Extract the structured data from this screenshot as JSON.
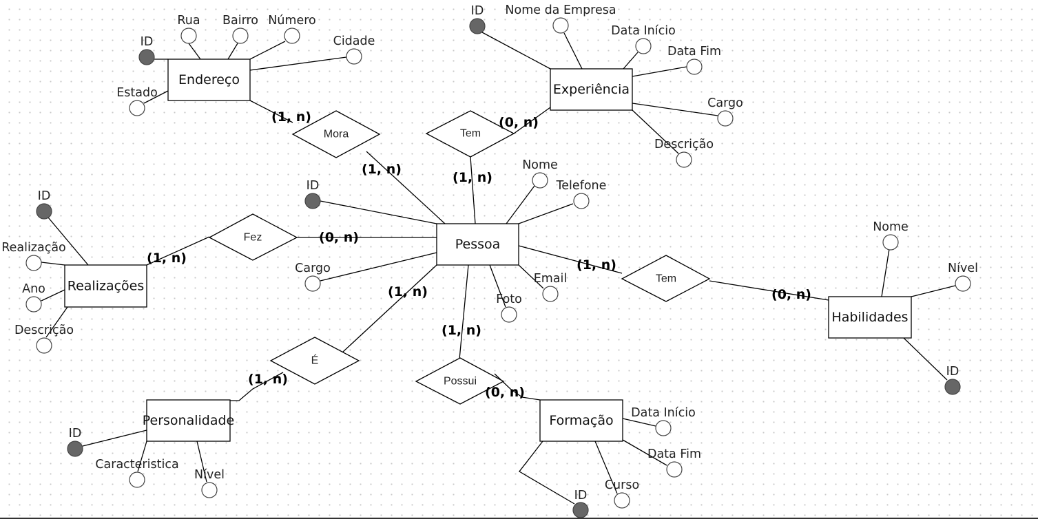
{
  "diagram": {
    "entities": [
      {
        "key": "endereco",
        "label": "Endereço"
      },
      {
        "key": "experiencia",
        "label": "Experiência"
      },
      {
        "key": "pessoa",
        "label": "Pessoa"
      },
      {
        "key": "realizacoes",
        "label": "Realizações"
      },
      {
        "key": "habilidades",
        "label": "Habilidades"
      },
      {
        "key": "personalidade",
        "label": "Personalidade"
      },
      {
        "key": "formacao",
        "label": "Formação"
      }
    ],
    "relationships": [
      {
        "key": "mora",
        "label": "Mora"
      },
      {
        "key": "tem_exp",
        "label": "Tem"
      },
      {
        "key": "fez",
        "label": "Fez"
      },
      {
        "key": "tem_hab",
        "label": "Tem"
      },
      {
        "key": "e",
        "label": "É"
      },
      {
        "key": "possui",
        "label": "Possui"
      }
    ],
    "attributes": {
      "endereco": [
        {
          "label": "ID",
          "key": true
        },
        {
          "label": "Rua",
          "key": false
        },
        {
          "label": "Bairro",
          "key": false
        },
        {
          "label": "Número",
          "key": false
        },
        {
          "label": "Cidade",
          "key": false
        },
        {
          "label": "Estado",
          "key": false
        }
      ],
      "experiencia": [
        {
          "label": "ID",
          "key": true
        },
        {
          "label": "Nome da Empresa",
          "key": false
        },
        {
          "label": "Data Início",
          "key": false
        },
        {
          "label": "Data Fim",
          "key": false
        },
        {
          "label": "Cargo",
          "key": false
        },
        {
          "label": "Descrição",
          "key": false
        }
      ],
      "pessoa": [
        {
          "label": "ID",
          "key": true
        },
        {
          "label": "Nome",
          "key": false
        },
        {
          "label": "Telefone",
          "key": false
        },
        {
          "label": "Cargo",
          "key": false
        },
        {
          "label": "Email",
          "key": false
        },
        {
          "label": "Foto",
          "key": false
        }
      ],
      "realizacoes": [
        {
          "label": "ID",
          "key": true
        },
        {
          "label": "Realização",
          "key": false
        },
        {
          "label": "Ano",
          "key": false
        },
        {
          "label": "Descrição",
          "key": false
        }
      ],
      "habilidades": [
        {
          "label": "Nome",
          "key": false
        },
        {
          "label": "Nível",
          "key": false
        },
        {
          "label": "ID",
          "key": true
        }
      ],
      "personalidade": [
        {
          "label": "ID",
          "key": true
        },
        {
          "label": "Caracteristica",
          "key": false
        },
        {
          "label": "Nível",
          "key": false
        }
      ],
      "formacao": [
        {
          "label": "Data Início",
          "key": false
        },
        {
          "label": "Data Fim",
          "key": false
        },
        {
          "label": "Curso",
          "key": false
        },
        {
          "label": "ID",
          "key": true
        }
      ]
    },
    "cardinalities": {
      "endereco_mora": "(1, n)",
      "mora_pessoa": "(1, n)",
      "experiencia_tem": "(0, n)",
      "tem_pessoa": "(1, n)",
      "realizacoes_fez": "(1, n)",
      "fez_pessoa": "(0, n)",
      "pessoa_tem_hab": "(1, n)",
      "habilidades_tem": "(0, n)",
      "pessoa_e": "(1, n)",
      "personalidade_e": "(1, n)",
      "pessoa_possui": "(1, n)",
      "formacao_possui": "(0, n)"
    },
    "colors": {
      "key_attribute": "#666666",
      "line": "#000000",
      "grid_dot": "#c8c8c8"
    }
  }
}
